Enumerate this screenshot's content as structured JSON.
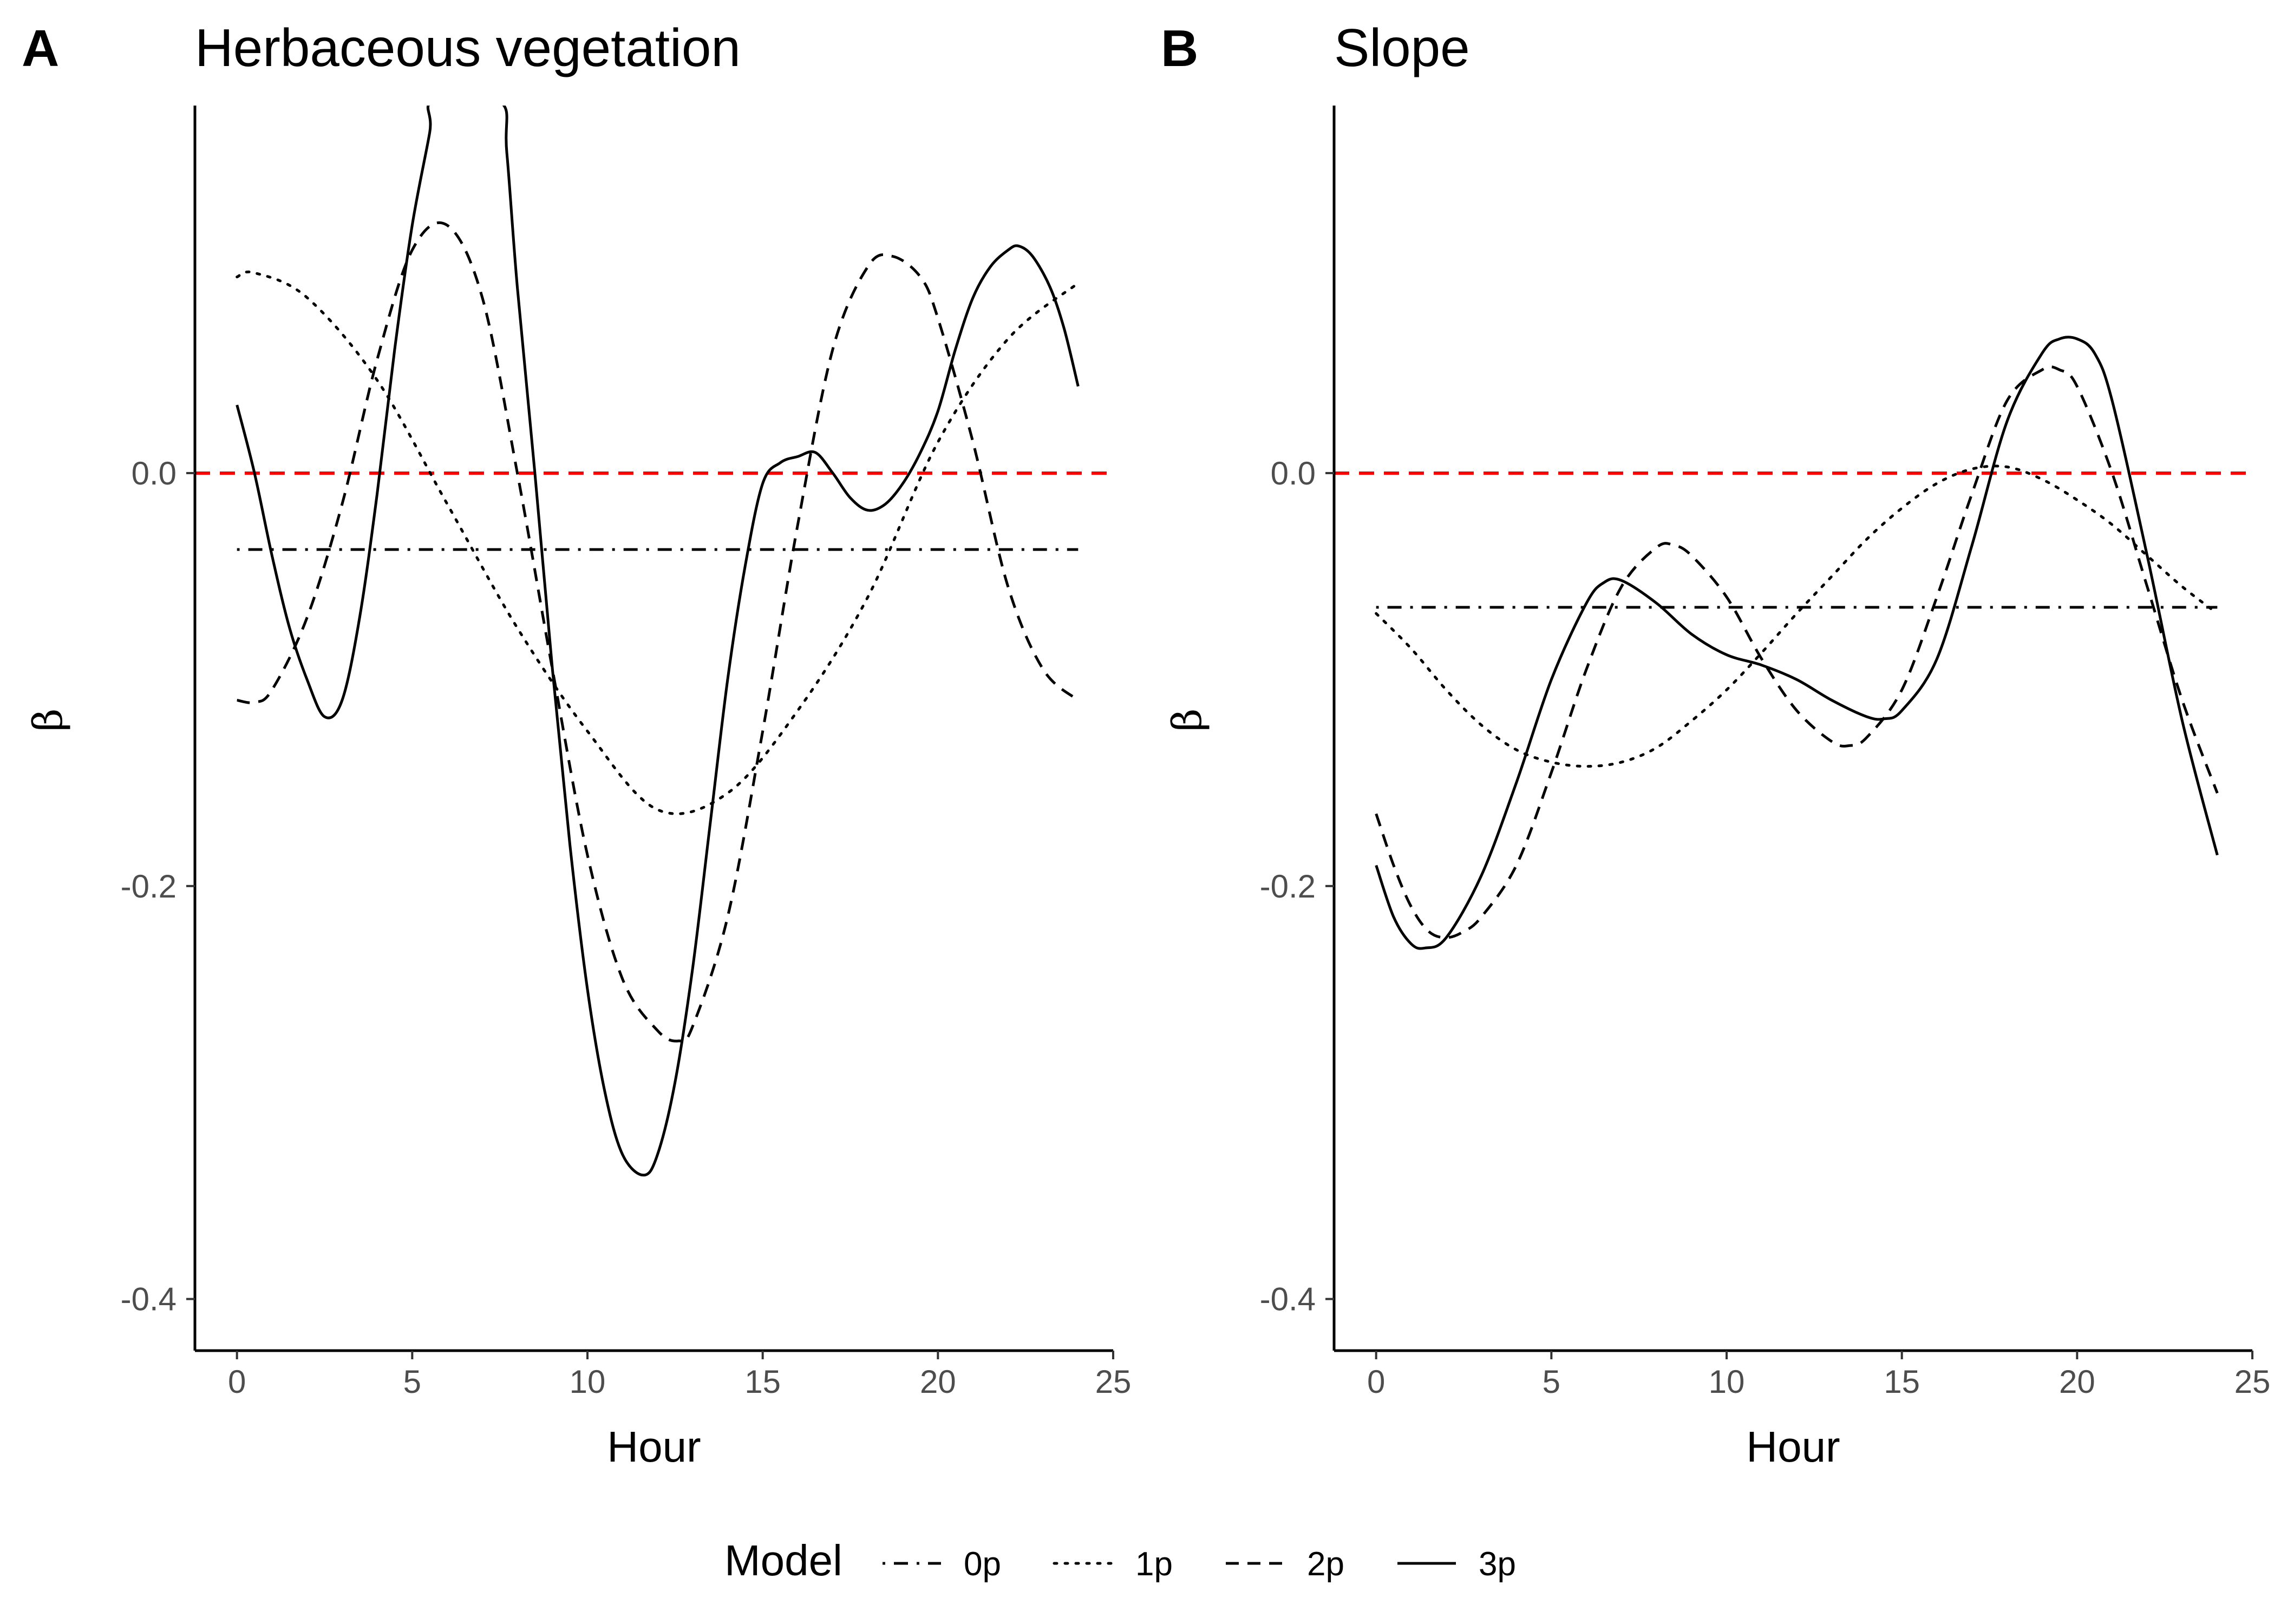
{
  "chart_data": [
    {
      "type": "line",
      "panel": "A",
      "title": "Herbaceous vegetation",
      "xlabel": "Hour",
      "ylabel": "β",
      "xlim": [
        -1.2,
        25
      ],
      "ylim": [
        -0.425,
        0.178
      ],
      "xticks": [
        0,
        5,
        10,
        15,
        20,
        25
      ],
      "yticks": [
        0.0,
        -0.2,
        -0.4
      ],
      "xtick_labels": [
        "0",
        "5",
        "10",
        "15",
        "20",
        "25"
      ],
      "ytick_labels": [
        "0.0",
        "-0.2",
        "-0.4"
      ],
      "reference_line": {
        "y": 0.0,
        "color": "#ff0000",
        "style": "dashed"
      },
      "series": [
        {
          "name": "0p",
          "style": "dotdash",
          "x": [
            0,
            24
          ],
          "y": [
            -0.037,
            -0.037
          ]
        },
        {
          "name": "1p",
          "style": "dotted",
          "x": [
            0,
            0.5,
            2,
            4,
            6,
            8,
            10,
            12,
            14,
            16,
            18,
            20,
            22,
            24
          ],
          "y": [
            0.095,
            0.097,
            0.085,
            0.045,
            -0.015,
            -0.075,
            -0.125,
            -0.163,
            -0.155,
            -0.115,
            -0.06,
            0.015,
            0.065,
            0.092
          ]
        },
        {
          "name": "2p",
          "style": "dashed",
          "x": [
            0,
            0.5,
            1,
            2,
            3,
            4,
            5,
            6,
            7,
            8,
            9,
            10,
            11,
            12,
            12.6,
            13,
            14,
            15,
            16,
            17,
            18,
            18.7,
            19.5,
            20,
            21,
            22,
            23,
            24
          ],
          "y": [
            -0.11,
            -0.111,
            -0.105,
            -0.07,
            -0.015,
            0.055,
            0.108,
            0.12,
            0.085,
            0.0,
            -0.095,
            -0.185,
            -0.245,
            -0.27,
            -0.275,
            -0.268,
            -0.215,
            -0.125,
            -0.025,
            0.06,
            0.1,
            0.105,
            0.095,
            0.075,
            0.015,
            -0.055,
            -0.095,
            -0.11
          ]
        },
        {
          "name": "3p",
          "style": "solid",
          "x": [
            0,
            0.5,
            1,
            1.5,
            2,
            2.5,
            3,
            3.5,
            4,
            4.5,
            5,
            5.5,
            5.6,
            7.5,
            7.7,
            8,
            8.5,
            9,
            9.5,
            10,
            10.5,
            11,
            11.6,
            12,
            12.5,
            13,
            13.5,
            14,
            14.5,
            15,
            15.5,
            16,
            16.5,
            17,
            17.5,
            18,
            18.5,
            19,
            19.5,
            20,
            20.5,
            21,
            21.5,
            22,
            22.3,
            22.7,
            23.2,
            23.6,
            24
          ],
          "y": [
            0.033,
            0.0,
            -0.04,
            -0.075,
            -0.1,
            -0.118,
            -0.11,
            -0.07,
            -0.01,
            0.06,
            0.12,
            0.165,
            0.18,
            0.18,
            0.155,
            0.09,
            0.0,
            -0.095,
            -0.18,
            -0.25,
            -0.3,
            -0.33,
            -0.34,
            -0.33,
            -0.295,
            -0.24,
            -0.17,
            -0.1,
            -0.045,
            -0.005,
            0.005,
            0.008,
            0.01,
            0.0,
            -0.012,
            -0.018,
            -0.015,
            -0.005,
            0.01,
            0.03,
            0.06,
            0.085,
            0.1,
            0.108,
            0.11,
            0.105,
            0.09,
            0.07,
            0.042
          ]
        }
      ]
    },
    {
      "type": "line",
      "panel": "B",
      "title": "Slope",
      "xlabel": "Hour",
      "ylabel": "β",
      "xlim": [
        -1.2,
        25
      ],
      "ylim": [
        -0.425,
        0.178
      ],
      "xticks": [
        0,
        5,
        10,
        15,
        20,
        25
      ],
      "yticks": [
        0.0,
        -0.2,
        -0.4
      ],
      "xtick_labels": [
        "0",
        "5",
        "10",
        "15",
        "20",
        "25"
      ],
      "ytick_labels": [
        "0.0",
        "-0.2",
        "-0.4"
      ],
      "reference_line": {
        "y": 0.0,
        "color": "#ff0000",
        "style": "dashed"
      },
      "series": [
        {
          "name": "0p",
          "style": "dotdash",
          "x": [
            0,
            24
          ],
          "y": [
            -0.065,
            -0.065
          ]
        },
        {
          "name": "1p",
          "style": "dotted",
          "x": [
            0,
            1,
            2,
            3,
            4,
            5,
            6,
            7,
            8,
            9,
            10,
            11,
            12,
            13,
            14,
            15,
            16,
            17,
            18,
            19,
            20,
            21,
            22,
            23,
            24
          ],
          "y": [
            -0.068,
            -0.085,
            -0.105,
            -0.122,
            -0.134,
            -0.14,
            -0.142,
            -0.14,
            -0.133,
            -0.12,
            -0.105,
            -0.087,
            -0.068,
            -0.05,
            -0.032,
            -0.017,
            -0.005,
            0.002,
            0.003,
            -0.003,
            -0.013,
            -0.025,
            -0.04,
            -0.055,
            -0.068
          ]
        },
        {
          "name": "2p",
          "style": "dashed",
          "x": [
            0,
            0.5,
            1,
            1.5,
            2,
            2.5,
            3,
            4,
            5,
            6,
            7,
            8,
            8.5,
            9,
            10,
            11,
            12,
            13,
            13.5,
            14,
            15,
            16,
            17,
            18,
            19,
            19.5,
            20,
            21,
            22,
            23,
            24
          ],
          "y": [
            -0.165,
            -0.19,
            -0.21,
            -0.222,
            -0.225,
            -0.222,
            -0.215,
            -0.19,
            -0.145,
            -0.095,
            -0.055,
            -0.036,
            -0.035,
            -0.04,
            -0.06,
            -0.09,
            -0.115,
            -0.13,
            -0.132,
            -0.128,
            -0.105,
            -0.06,
            -0.01,
            0.035,
            0.05,
            0.05,
            0.042,
            0.0,
            -0.055,
            -0.11,
            -0.155
          ]
        },
        {
          "name": "3p",
          "style": "solid",
          "x": [
            0,
            0.5,
            1,
            1.4,
            2,
            3,
            4,
            5,
            6,
            6.5,
            7,
            8,
            9,
            10,
            11,
            12,
            13,
            14,
            14.5,
            15,
            16,
            17,
            18,
            19,
            19.5,
            20,
            20.5,
            21,
            22,
            23,
            24
          ],
          "y": [
            -0.19,
            -0.215,
            -0.228,
            -0.23,
            -0.225,
            -0.195,
            -0.15,
            -0.1,
            -0.063,
            -0.053,
            -0.052,
            -0.063,
            -0.078,
            -0.088,
            -0.093,
            -0.1,
            -0.11,
            -0.118,
            -0.119,
            -0.115,
            -0.09,
            -0.035,
            0.025,
            0.058,
            0.065,
            0.065,
            0.058,
            0.035,
            -0.04,
            -0.12,
            -0.185
          ]
        }
      ]
    }
  ],
  "legend": {
    "title": "Model",
    "placement": "bottom",
    "items": [
      {
        "label": "0p",
        "style": "dotdash"
      },
      {
        "label": "1p",
        "style": "dotted"
      },
      {
        "label": "2p",
        "style": "dashed"
      },
      {
        "label": "3p",
        "style": "solid"
      }
    ]
  },
  "colors": {
    "series": "#000000",
    "reference": "#ff0000",
    "axis": "#000000",
    "tick_text": "#4d4d4d"
  }
}
